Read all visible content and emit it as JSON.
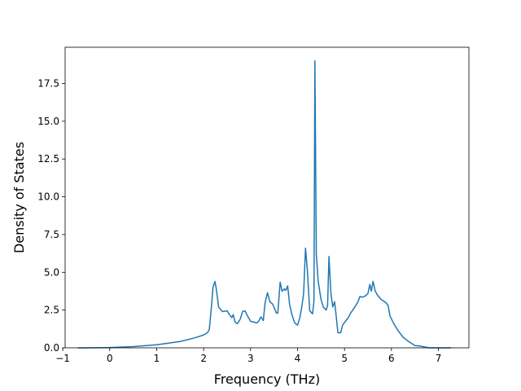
{
  "chart_data": {
    "type": "line",
    "title": "",
    "xlabel": "Frequency (THz)",
    "ylabel": "Density of States",
    "xlim": [
      -0.95,
      7.65
    ],
    "ylim": [
      0,
      19.9
    ],
    "xticks": [
      -1,
      0,
      1,
      2,
      3,
      4,
      5,
      6,
      7
    ],
    "xtick_labels": [
      "−1",
      "0",
      "1",
      "2",
      "3",
      "4",
      "5",
      "6",
      "7"
    ],
    "yticks": [
      0,
      2.5,
      5,
      7.5,
      10,
      12.5,
      15,
      17.5
    ],
    "ytick_labels": [
      "0.0",
      "2.5",
      "5.0",
      "7.5",
      "10.0",
      "12.5",
      "15.0",
      "17.5"
    ],
    "grid": false,
    "legend": "none",
    "line_color": "#1f77b4",
    "series": [
      {
        "x": [
          -0.68,
          -0.5,
          0,
          0.5,
          1.0,
          1.5,
          1.8,
          2.0,
          2.08,
          2.12,
          2.16,
          2.2,
          2.24,
          2.27,
          2.32,
          2.4,
          2.5,
          2.55,
          2.6,
          2.63,
          2.67,
          2.72,
          2.78,
          2.83,
          2.88,
          2.92,
          3.0,
          3.08,
          3.13,
          3.17,
          3.22,
          3.27,
          3.31,
          3.36,
          3.41,
          3.47,
          3.55,
          3.58,
          3.63,
          3.67,
          3.72,
          3.75,
          3.79,
          3.83,
          3.88,
          3.94,
          4.0,
          4.05,
          4.09,
          4.13,
          4.17,
          4.21,
          4.26,
          4.32,
          4.35,
          4.37,
          4.4,
          4.44,
          4.5,
          4.55,
          4.61,
          4.64,
          4.67,
          4.71,
          4.75,
          4.79,
          4.82,
          4.86,
          4.92,
          4.96,
          5.03,
          5.08,
          5.13,
          5.2,
          5.28,
          5.33,
          5.38,
          5.45,
          5.5,
          5.54,
          5.57,
          5.61,
          5.65,
          5.7,
          5.78,
          5.88,
          5.93,
          5.97,
          6.05,
          6.15,
          6.25,
          6.35,
          6.5,
          6.6,
          6.8,
          7.27
        ],
        "y": [
          0.0,
          0.0,
          0.02,
          0.08,
          0.2,
          0.42,
          0.65,
          0.85,
          1.0,
          1.2,
          2.5,
          4.0,
          4.4,
          3.9,
          2.7,
          2.4,
          2.45,
          2.2,
          2.0,
          2.2,
          1.7,
          1.6,
          1.9,
          2.4,
          2.45,
          2.2,
          1.75,
          1.7,
          1.65,
          1.75,
          2.05,
          1.8,
          3.0,
          3.65,
          3.05,
          2.9,
          2.3,
          2.3,
          4.35,
          3.75,
          3.9,
          3.8,
          4.1,
          2.9,
          2.2,
          1.65,
          1.5,
          2.0,
          2.7,
          3.6,
          6.6,
          5.1,
          2.45,
          2.25,
          3.1,
          19.0,
          6.2,
          4.4,
          3.2,
          2.7,
          2.5,
          2.8,
          6.05,
          3.65,
          2.7,
          3.05,
          2.2,
          1.0,
          1.0,
          1.5,
          1.8,
          2.0,
          2.3,
          2.6,
          3.0,
          3.4,
          3.35,
          3.45,
          3.6,
          4.2,
          3.75,
          4.4,
          3.8,
          3.5,
          3.2,
          3.0,
          2.8,
          2.1,
          1.6,
          1.1,
          0.7,
          0.45,
          0.15,
          0.12,
          0.0,
          0.0
        ]
      }
    ]
  }
}
